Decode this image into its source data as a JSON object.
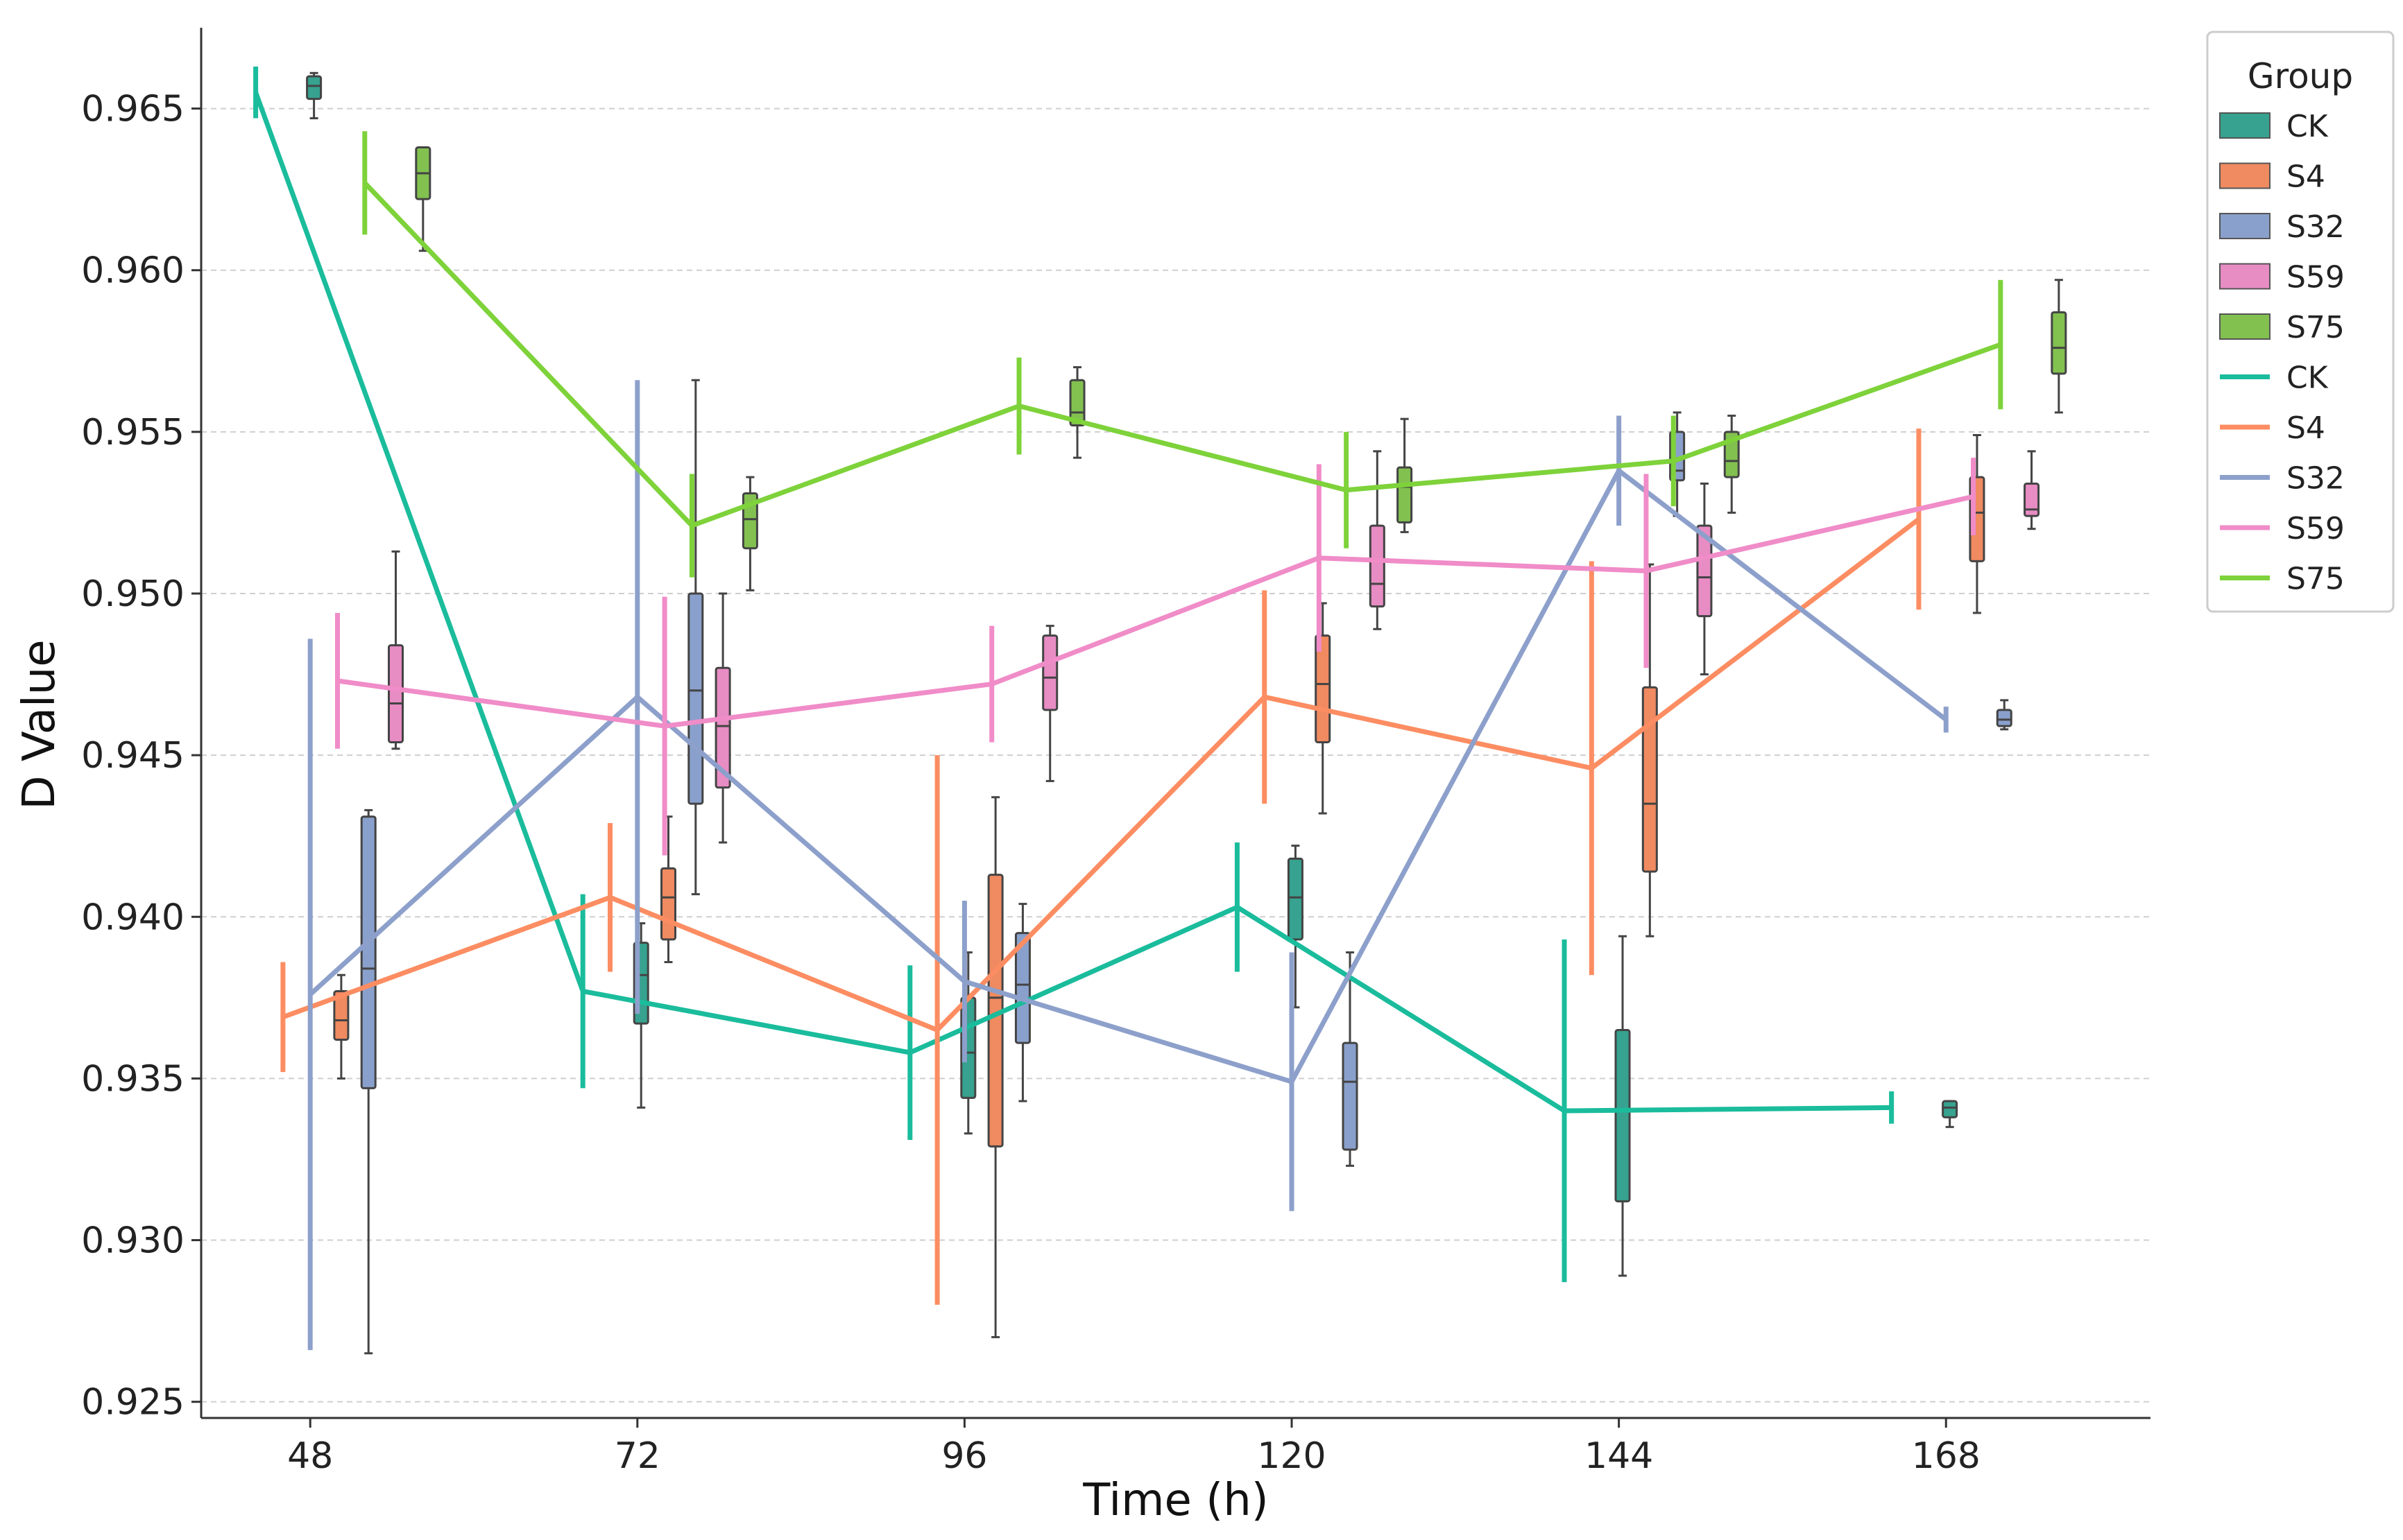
{
  "chart_data": {
    "type": "line",
    "title": "",
    "xlabel": "Time (h)",
    "ylabel": "D Value",
    "x_ticks": [
      48,
      72,
      96,
      120,
      144,
      168
    ],
    "y_ticks": [
      "0.925",
      "0.930",
      "0.935",
      "0.940",
      "0.945",
      "0.950",
      "0.955",
      "0.960",
      "0.965"
    ],
    "ylim": [
      0.9245,
      0.9675
    ],
    "grid": "horizontal dashed",
    "legend_title": "Group",
    "legend_position": "top-right",
    "colors": {
      "CK": "#1abc9c",
      "S4": "#fc8d62",
      "S32": "#8da0cb",
      "S59": "#f08cc8",
      "S75": "#7ed23a"
    },
    "box_colors": {
      "CK": "#36a28f",
      "S4": "#f08a60",
      "S32": "#8aa0cc",
      "S59": "#e88cc4",
      "S75": "#82c150"
    },
    "box_legend": [
      "CK",
      "S4",
      "S32",
      "S59",
      "S75"
    ],
    "line_legend": [
      "CK",
      "S4",
      "S32",
      "S59",
      "S75"
    ],
    "line_series": [
      {
        "name": "CK",
        "points": [
          {
            "x": 44.0,
            "y": 0.9655,
            "err": 0.0008
          },
          {
            "x": 68.0,
            "y": 0.9377,
            "err": 0.003
          },
          {
            "x": 92.0,
            "y": 0.9358,
            "err": 0.0027
          },
          {
            "x": 116.0,
            "y": 0.9403,
            "err": 0.002
          },
          {
            "x": 140.0,
            "y": 0.934,
            "err": 0.0053
          },
          {
            "x": 164.0,
            "y": 0.9341,
            "err": 0.0005
          }
        ]
      },
      {
        "name": "S4",
        "points": [
          {
            "x": 46.0,
            "y": 0.9369,
            "err": 0.0017
          },
          {
            "x": 70.0,
            "y": 0.9406,
            "err": 0.0023
          },
          {
            "x": 94.0,
            "y": 0.9365,
            "err": 0.0085
          },
          {
            "x": 118.0,
            "y": 0.9468,
            "err": 0.0033
          },
          {
            "x": 142.0,
            "y": 0.9446,
            "err": 0.0064
          },
          {
            "x": 166.0,
            "y": 0.9523,
            "err": 0.0028
          }
        ]
      },
      {
        "name": "S32",
        "points": [
          {
            "x": 48.0,
            "y": 0.9376,
            "err": 0.011
          },
          {
            "x": 72.0,
            "y": 0.9468,
            "err": 0.0098
          },
          {
            "x": 96.0,
            "y": 0.938,
            "err": 0.0025
          },
          {
            "x": 120.0,
            "y": 0.9349,
            "err": 0.004
          },
          {
            "x": 144.0,
            "y": 0.9538,
            "err": 0.0017
          },
          {
            "x": 168.0,
            "y": 0.9461,
            "err": 0.0004
          }
        ]
      },
      {
        "name": "S59",
        "points": [
          {
            "x": 50.0,
            "y": 0.9473,
            "err": 0.0021
          },
          {
            "x": 74.0,
            "y": 0.9459,
            "err": 0.004
          },
          {
            "x": 98.0,
            "y": 0.9472,
            "err": 0.0018
          },
          {
            "x": 122.0,
            "y": 0.9511,
            "err": 0.0029
          },
          {
            "x": 146.0,
            "y": 0.9507,
            "err": 0.003
          },
          {
            "x": 170.0,
            "y": 0.953,
            "err": 0.0012
          }
        ]
      },
      {
        "name": "S75",
        "points": [
          {
            "x": 52.0,
            "y": 0.9627,
            "err": 0.0016
          },
          {
            "x": 76.0,
            "y": 0.9521,
            "err": 0.0016
          },
          {
            "x": 100.0,
            "y": 0.9558,
            "err": 0.0015
          },
          {
            "x": 124.0,
            "y": 0.9532,
            "err": 0.0018
          },
          {
            "x": 148.0,
            "y": 0.9541,
            "err": 0.0014
          },
          {
            "x": 172.0,
            "y": 0.9577,
            "err": 0.002
          }
        ]
      }
    ],
    "box_series": [
      {
        "name": "CK",
        "boxes": [
          {
            "x": 44.0,
            "q1": 0.9653,
            "median": 0.9657,
            "q3": 0.966,
            "min": 0.9647,
            "max": 0.9661
          },
          {
            "x": 68.0,
            "q1": 0.9367,
            "median": 0.9382,
            "q3": 0.9392,
            "min": 0.9341,
            "max": 0.9398
          },
          {
            "x": 92.0,
            "q1": 0.9344,
            "median": 0.9358,
            "q3": 0.9375,
            "min": 0.9333,
            "max": 0.9389
          },
          {
            "x": 116.0,
            "q1": 0.9393,
            "median": 0.9406,
            "q3": 0.9418,
            "min": 0.9372,
            "max": 0.9422
          },
          {
            "x": 140.0,
            "q1": 0.9312,
            "median": 0.934,
            "q3": 0.9365,
            "min": 0.9289,
            "max": 0.9394
          },
          {
            "x": 164.0,
            "q1": 0.9338,
            "median": 0.9341,
            "q3": 0.9343,
            "min": 0.9335,
            "max": 0.9343
          }
        ]
      },
      {
        "name": "S4",
        "boxes": [
          {
            "x": 46.0,
            "q1": 0.9362,
            "median": 0.9368,
            "q3": 0.9377,
            "min": 0.935,
            "max": 0.9382
          },
          {
            "x": 70.0,
            "q1": 0.9393,
            "median": 0.9406,
            "q3": 0.9415,
            "min": 0.9386,
            "max": 0.9431
          },
          {
            "x": 94.0,
            "q1": 0.9329,
            "median": 0.9375,
            "q3": 0.9413,
            "min": 0.927,
            "max": 0.9437
          },
          {
            "x": 118.0,
            "q1": 0.9454,
            "median": 0.9472,
            "q3": 0.9487,
            "min": 0.9432,
            "max": 0.9497
          },
          {
            "x": 142.0,
            "q1": 0.9414,
            "median": 0.9435,
            "q3": 0.9471,
            "min": 0.9394,
            "max": 0.9509
          },
          {
            "x": 166.0,
            "q1": 0.951,
            "median": 0.9525,
            "q3": 0.9536,
            "min": 0.9494,
            "max": 0.9549
          }
        ]
      },
      {
        "name": "S32",
        "boxes": [
          {
            "x": 48.0,
            "q1": 0.9347,
            "median": 0.9384,
            "q3": 0.9431,
            "min": 0.9265,
            "max": 0.9433
          },
          {
            "x": 72.0,
            "q1": 0.9435,
            "median": 0.947,
            "q3": 0.95,
            "min": 0.9407,
            "max": 0.9566
          },
          {
            "x": 96.0,
            "q1": 0.9361,
            "median": 0.9379,
            "q3": 0.9395,
            "min": 0.9343,
            "max": 0.9404
          },
          {
            "x": 120.0,
            "q1": 0.9328,
            "median": 0.9349,
            "q3": 0.9361,
            "min": 0.9323,
            "max": 0.9389
          },
          {
            "x": 144.0,
            "q1": 0.9535,
            "median": 0.9538,
            "q3": 0.955,
            "min": 0.9524,
            "max": 0.9556
          },
          {
            "x": 168.0,
            "q1": 0.9459,
            "median": 0.9461,
            "q3": 0.9464,
            "min": 0.9458,
            "max": 0.9467
          }
        ]
      },
      {
        "name": "S59",
        "boxes": [
          {
            "x": 50.0,
            "q1": 0.9454,
            "median": 0.9466,
            "q3": 0.9484,
            "min": 0.9452,
            "max": 0.9513
          },
          {
            "x": 74.0,
            "q1": 0.944,
            "median": 0.9459,
            "q3": 0.9477,
            "min": 0.9423,
            "max": 0.95
          },
          {
            "x": 98.0,
            "q1": 0.9464,
            "median": 0.9474,
            "q3": 0.9487,
            "min": 0.9442,
            "max": 0.949
          },
          {
            "x": 122.0,
            "q1": 0.9496,
            "median": 0.9503,
            "q3": 0.9521,
            "min": 0.9489,
            "max": 0.9544
          },
          {
            "x": 146.0,
            "q1": 0.9493,
            "median": 0.9505,
            "q3": 0.9521,
            "min": 0.9475,
            "max": 0.9534
          },
          {
            "x": 170.0,
            "q1": 0.9524,
            "median": 0.9526,
            "q3": 0.9534,
            "min": 0.952,
            "max": 0.9544
          }
        ]
      },
      {
        "name": "S75",
        "boxes": [
          {
            "x": 52.0,
            "q1": 0.9622,
            "median": 0.963,
            "q3": 0.9638,
            "min": 0.9606,
            "max": 0.9638
          },
          {
            "x": 76.0,
            "q1": 0.9514,
            "median": 0.9523,
            "q3": 0.9531,
            "min": 0.9501,
            "max": 0.9536
          },
          {
            "x": 100.0,
            "q1": 0.9552,
            "median": 0.9556,
            "q3": 0.9566,
            "min": 0.9542,
            "max": 0.957
          },
          {
            "x": 124.0,
            "q1": 0.9522,
            "median": 0.9533,
            "q3": 0.9539,
            "min": 0.9519,
            "max": 0.9554
          },
          {
            "x": 148.0,
            "q1": 0.9536,
            "median": 0.9541,
            "q3": 0.955,
            "min": 0.9525,
            "max": 0.9555
          },
          {
            "x": 172.0,
            "q1": 0.9568,
            "median": 0.9576,
            "q3": 0.9587,
            "min": 0.9556,
            "max": 0.9597
          }
        ]
      }
    ]
  }
}
